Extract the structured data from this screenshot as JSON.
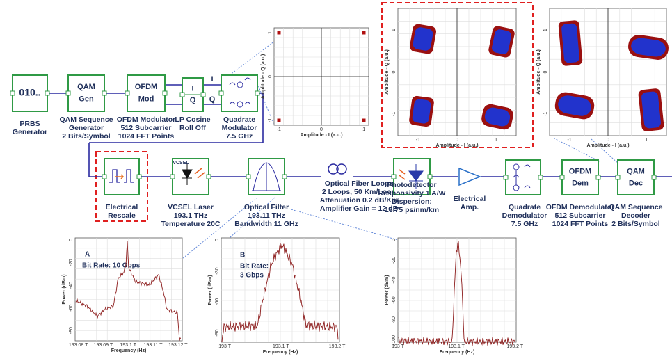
{
  "blocks": [
    {
      "inner": [
        "010.."
      ],
      "caption": [
        "PRBS",
        "Generator"
      ]
    },
    {
      "inner": [
        "QAM",
        "Gen"
      ],
      "caption": [
        "QAM Sequence",
        "Generator",
        "2 Bits/Symbol"
      ]
    },
    {
      "inner": [
        "OFDM",
        "Mod"
      ],
      "caption": [
        "OFDM Modulator",
        "512 Subcarrier",
        "1024 FFT Points"
      ]
    },
    {
      "inner": [
        "I",
        "Q"
      ],
      "caption": [
        "LP Cosine",
        "Roll Off"
      ]
    },
    {
      "caption": [
        "Quadrate",
        "Modulator",
        "7.5 GHz"
      ]
    },
    {
      "caption": [
        "Electrical",
        "Rescale"
      ]
    },
    {
      "inner": [
        "VCSEL"
      ],
      "caption": [
        "VCSEL Laser",
        "193.1 THz",
        "Temperature 20C"
      ]
    },
    {
      "caption": [
        "Optical Filter",
        "193.11 THz",
        "Bandwidth 11 GHz"
      ]
    },
    {
      "caption": [
        "Optical Fiber Loops",
        "2 Loops, 50 Km/Loop",
        "Attenuation 0.2 dB/Km",
        "Amplifier Gain = 12 dB"
      ]
    },
    {
      "caption": [
        "Photodetector",
        "Responsivity 1 A/W",
        "Dispersion:",
        "16.75 ps/nm/km"
      ]
    },
    {
      "caption": [
        "Electrical",
        "Amp."
      ]
    },
    {
      "caption": [
        "Quadrate",
        "Demodulator",
        "7.5 GHz"
      ]
    },
    {
      "inner": [
        "OFDM",
        "Dem"
      ],
      "caption": [
        "OFDM Demodulator",
        "512 Subcarrier",
        "1024 FFT Points"
      ]
    },
    {
      "inner": [
        "QAM",
        "Dec"
      ],
      "caption": [
        "QAM Sequence",
        "Decoder",
        "2 Bits/Symbol"
      ]
    }
  ],
  "wire_labels": [
    "I",
    "Q"
  ],
  "constellations": [
    {
      "y_label": "Amplitude - Q (a.u.)",
      "x_label": "Amplitude - I (a.u.)",
      "y_ticks": [
        "1",
        "0",
        "-1"
      ],
      "x_ticks": [
        "-1",
        "0",
        "1"
      ]
    },
    {
      "y_label": "Amplitude - Q (a.u.)",
      "x_label": "Amplitude - I (a.u.)",
      "y_ticks": [
        "1",
        "0",
        "-1"
      ],
      "x_ticks": [
        "-1",
        "0",
        "1"
      ]
    },
    {
      "y_label": "Amplitude - Q (a.u.)",
      "x_label": "Amplitude - I (a.u.)",
      "y_ticks": [
        "1",
        "0",
        "-1"
      ],
      "x_ticks": [
        "-1",
        "0",
        "1"
      ]
    }
  ],
  "spectra": [
    {
      "title": [
        "A",
        "Bit Rate: 10 Gbps"
      ],
      "y_label": "Power (dBm)",
      "x_label": "Frequency (Hz)",
      "y_ticks": [
        "0",
        "-20",
        "-40",
        "-60",
        "-80"
      ],
      "x_ticks": [
        "193.08 T",
        "193.09 T",
        "193.1 T",
        "193.11 T",
        "193.12 T"
      ]
    },
    {
      "title": [
        "B",
        "Bit Rate:",
        "3 Gbps"
      ],
      "y_label": "Power (dBm)",
      "x_label": "Frequency (Hz)",
      "y_ticks": [
        "0",
        "-30",
        "-60",
        "-90"
      ],
      "x_ticks": [
        "193 T",
        "193.1 T",
        "193.2 T"
      ]
    },
    {
      "y_label": "Power (dBm)",
      "x_label": "Frequency (Hz)",
      "y_ticks": [
        "0",
        "-20",
        "-40",
        "-60",
        "-80",
        "-100"
      ],
      "x_ticks": [
        "193 T",
        "193.1 T",
        "193.2 T"
      ]
    }
  ]
}
